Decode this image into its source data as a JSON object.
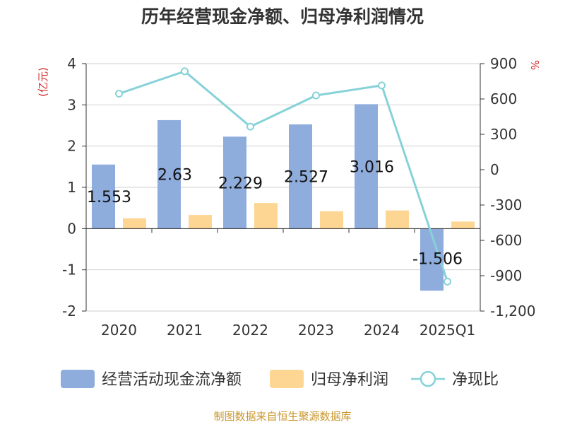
{
  "chart_data": {
    "type": "bar",
    "title": "历年经营现金净额、归母净利润情况",
    "left_axis_unit": "(亿元)",
    "right_axis_unit": "%",
    "categories": [
      "2020",
      "2021",
      "2022",
      "2023",
      "2024",
      "2025Q1"
    ],
    "left_ylim": [
      -2,
      4
    ],
    "left_ticks": [
      4,
      3,
      2,
      1,
      0,
      -1,
      -2
    ],
    "right_ylim": [
      -1200,
      900
    ],
    "right_ticks": [
      "900",
      "600",
      "300",
      "0",
      "-300",
      "-600",
      "-900",
      "-1,200"
    ],
    "right_tick_values": [
      900,
      600,
      300,
      0,
      -300,
      -600,
      -900,
      -1200
    ],
    "series": [
      {
        "name": "经营活动现金流净额",
        "kind": "bar",
        "axis": "left",
        "color": "#8eacdc",
        "values": [
          1.553,
          2.63,
          2.229,
          2.527,
          3.016,
          -1.506
        ],
        "labels": [
          "1.553",
          "2.63",
          "2.229",
          "2.527",
          "3.016",
          "-1.506"
        ]
      },
      {
        "name": "归母净利润",
        "kind": "bar",
        "axis": "left",
        "color": "#fdd694",
        "values": [
          0.25,
          0.33,
          0.62,
          0.42,
          0.44,
          0.17
        ]
      },
      {
        "name": "净现比",
        "kind": "line",
        "axis": "right",
        "color": "#86d2d8",
        "values": [
          645,
          835,
          365,
          630,
          715,
          -950
        ]
      }
    ],
    "source": "制图数据来自恒生聚源数据库"
  }
}
